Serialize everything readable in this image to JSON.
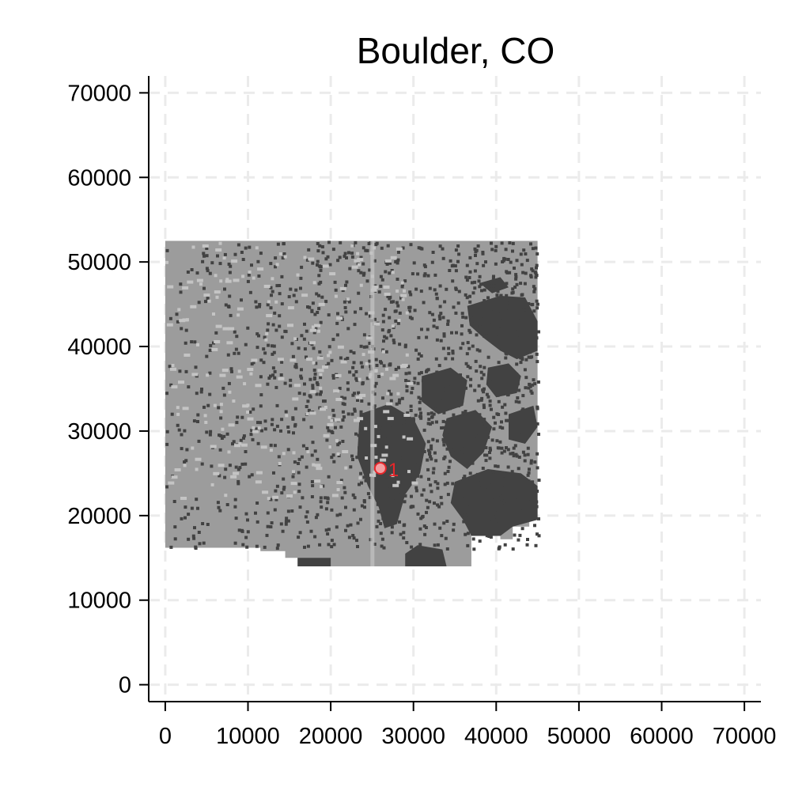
{
  "title": "Boulder, CO",
  "axes": {
    "x_ticks": [
      "0",
      "10000",
      "20000",
      "30000",
      "40000",
      "50000",
      "60000",
      "70000"
    ],
    "y_ticks": [
      "0",
      "10000",
      "20000",
      "30000",
      "40000",
      "50000",
      "60000",
      "70000"
    ],
    "xlim": [
      -2000,
      72000
    ],
    "ylim": [
      -2000,
      72000
    ],
    "grid": true,
    "grid_style": "dashed"
  },
  "colors": {
    "background": "#ffffff",
    "grid": "#ebebeb",
    "light_land": "#9c9c9c",
    "dark_urban": "#424242",
    "pale_patch": "#c4c4c4",
    "marker": "#e8262a",
    "marker_fill": "#f3a0a2"
  },
  "map": {
    "extent_x": [
      0,
      45000
    ],
    "extent_y": [
      14000,
      52500
    ],
    "marker": {
      "label": "1",
      "x": 26000,
      "y": 25600
    }
  }
}
